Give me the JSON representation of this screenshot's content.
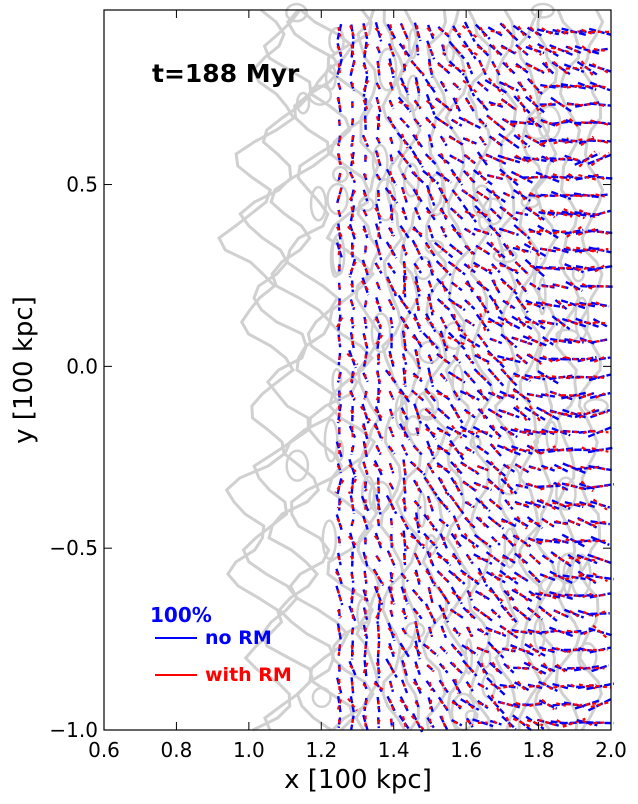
{
  "chart_data": {
    "type": "quiver",
    "title": "",
    "xlabel": "x [100 kpc]",
    "ylabel": "y [100 kpc]",
    "xlim": [
      0.6,
      2.0
    ],
    "ylim": [
      -1.0,
      0.98
    ],
    "xticks": [
      "0.6",
      "0.8",
      "1.0",
      "1.2",
      "1.4",
      "1.6",
      "1.8",
      "2.0"
    ],
    "xtick_values": [
      0.6,
      0.8,
      1.0,
      1.2,
      1.4,
      1.6,
      1.8,
      2.0
    ],
    "yticks": [
      "−1.0",
      "−0.5",
      "0.0",
      "0.5"
    ],
    "ytick_values": [
      -1.0,
      -0.5,
      0.0,
      0.5
    ],
    "grid": false,
    "annotation": "t=188 Myr",
    "legend": {
      "scale_label": "100%",
      "entries": [
        {
          "label": "no RM",
          "color": "#0000ff"
        },
        {
          "label": "with RM",
          "color": "#ff0000"
        }
      ],
      "placement": "lower-left"
    },
    "series": [
      {
        "name": "no RM",
        "color": "#0000ff"
      },
      {
        "name": "with RM",
        "color": "#ff0000"
      }
    ],
    "background": {
      "kind": "contours",
      "color": "#d0d0d0"
    },
    "vector_grid": {
      "x_start": 1.25,
      "x_end": 1.97,
      "dx": 0.036,
      "y_start": -0.98,
      "y_end": 0.94,
      "dy": 0.05
    }
  },
  "colors": {
    "no_rm": "#0000ff",
    "with_rm": "#ff0000",
    "contour": "#d0d0d0",
    "axis": "#000000"
  }
}
